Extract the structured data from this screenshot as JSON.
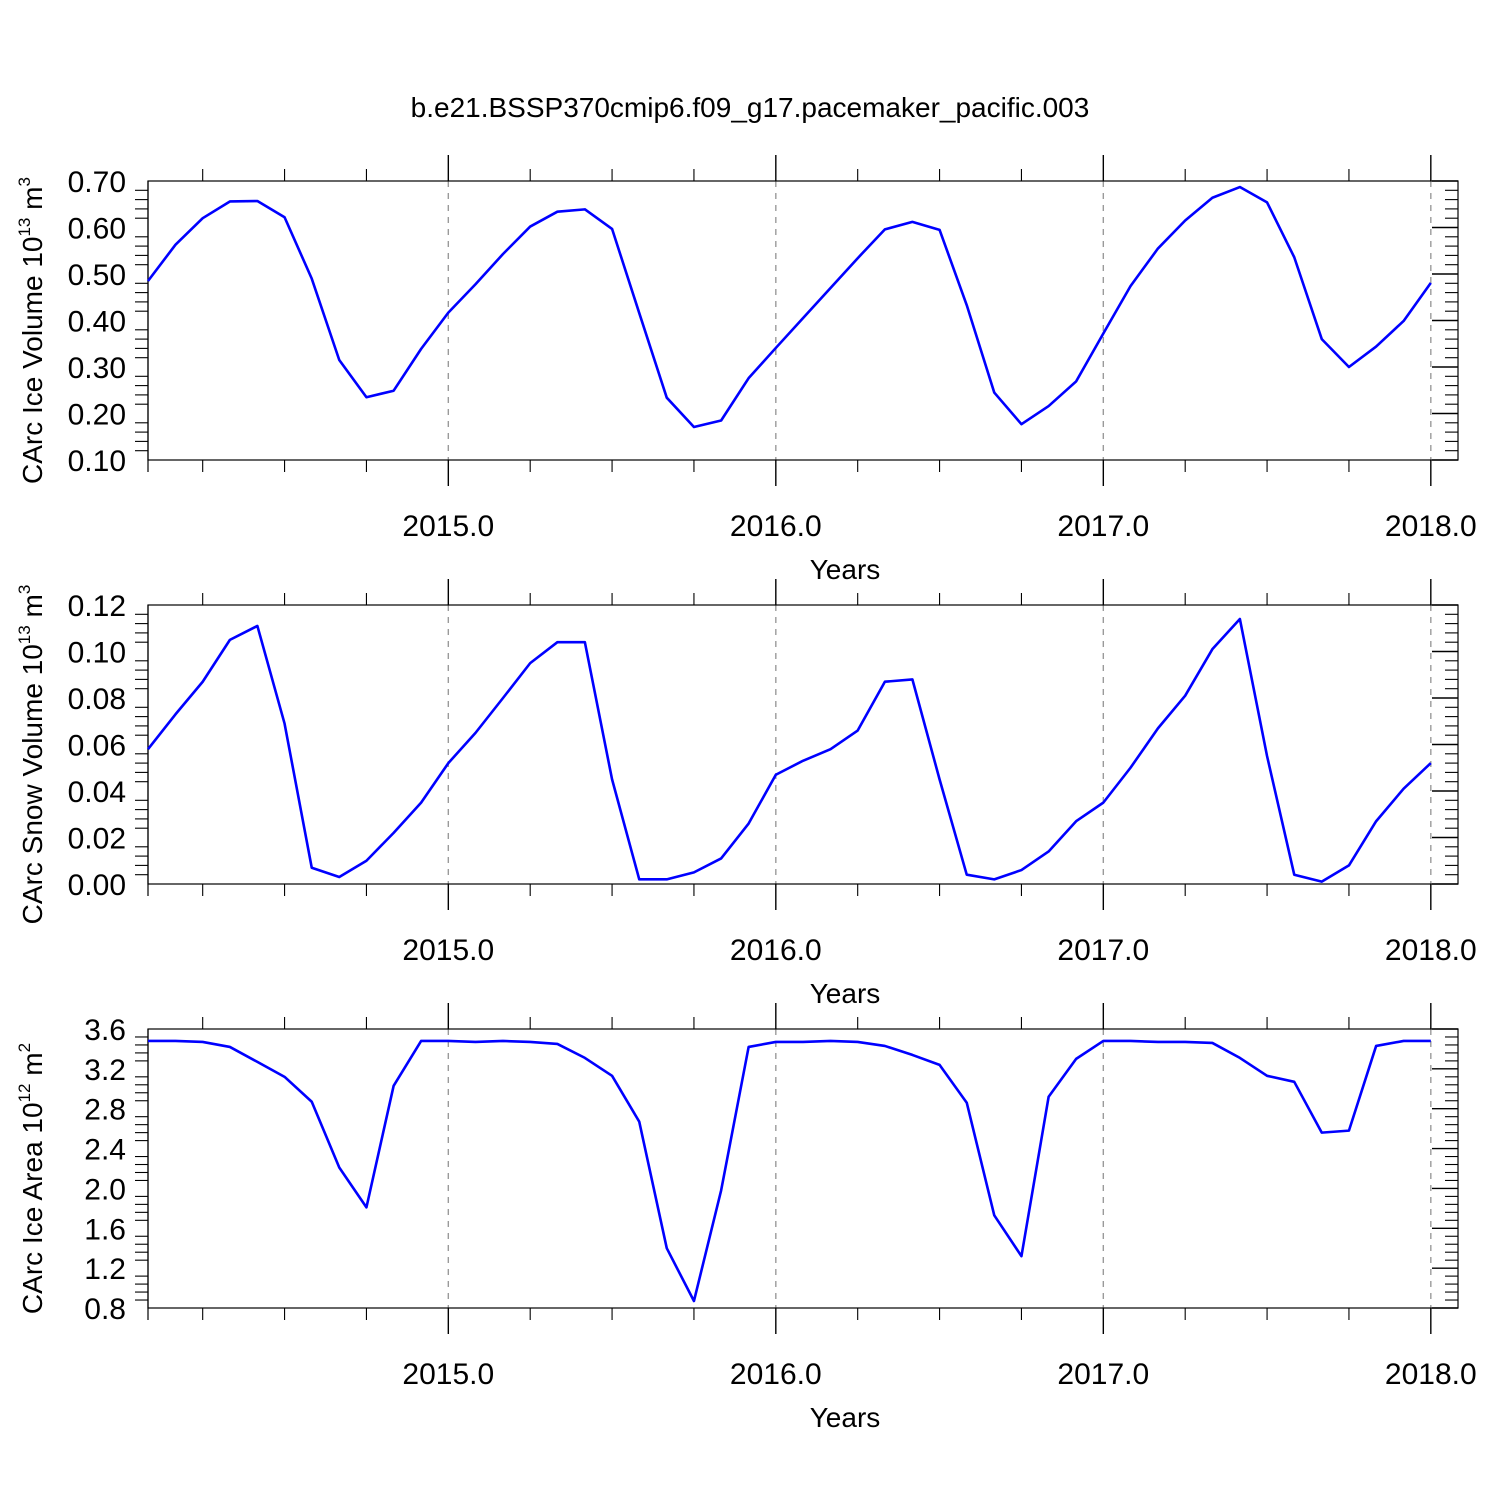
{
  "figure": {
    "title": "b.e21.BSSP370cmip6.f09_g17.pacemaker_pacific.003"
  },
  "style": {
    "line_color": "#0000ff",
    "axis_color": "#000000",
    "grid_color": "#9a9a9a",
    "background": "#ffffff"
  },
  "chart_data": [
    {
      "type": "line",
      "ylabel": "CArc Ice Volume 10^13 m^3",
      "ylabel_parts": {
        "base": "CArc Ice Volume 10",
        "exp1": "13",
        "mid": " m",
        "exp2": "3"
      },
      "xlabel": "Years",
      "xlim": [
        2014.083,
        2018.083
      ],
      "ylim": [
        0.1,
        0.7
      ],
      "yticks": [
        0.1,
        0.2,
        0.3,
        0.4,
        0.5,
        0.6,
        0.7
      ],
      "ytick_labels": [
        "0.10",
        "0.20",
        "0.30",
        "0.40",
        "0.50",
        "0.60",
        "0.70"
      ],
      "xticks": [
        2015.0,
        2016.0,
        2017.0,
        2018.0
      ],
      "xtick_labels": [
        "2015.0",
        "2016.0",
        "2017.0",
        "2018.0"
      ],
      "grid": "vertical dashed at major x ticks",
      "x": [
        2014.083,
        2014.167,
        2014.25,
        2014.333,
        2014.417,
        2014.5,
        2014.583,
        2014.667,
        2014.75,
        2014.833,
        2014.917,
        2015.0,
        2015.083,
        2015.167,
        2015.25,
        2015.333,
        2015.417,
        2015.5,
        2015.583,
        2015.667,
        2015.75,
        2015.833,
        2015.917,
        2016.0,
        2016.083,
        2016.167,
        2016.25,
        2016.333,
        2016.417,
        2016.5,
        2016.583,
        2016.667,
        2016.75,
        2016.833,
        2016.917,
        2017.0,
        2017.083,
        2017.167,
        2017.25,
        2017.333,
        2017.417,
        2017.5,
        2017.583,
        2017.667,
        2017.75,
        2017.833,
        2017.917,
        2018.0
      ],
      "series": [
        {
          "values": [
            0.485,
            0.563,
            0.62,
            0.656,
            0.657,
            0.622,
            0.49,
            0.315,
            0.235,
            0.249,
            0.339,
            0.417,
            0.478,
            0.543,
            0.602,
            0.634,
            0.639,
            0.597,
            0.416,
            0.234,
            0.171,
            0.185,
            0.276,
            0.341,
            0.405,
            0.47,
            0.534,
            0.596,
            0.612,
            0.595,
            0.433,
            0.245,
            0.177,
            0.216,
            0.269,
            0.372,
            0.474,
            0.555,
            0.615,
            0.664,
            0.687,
            0.654,
            0.536,
            0.36,
            0.3,
            0.344,
            0.399,
            0.481
          ]
        }
      ]
    },
    {
      "type": "line",
      "ylabel": "CArc Snow Volume 10^13 m^3",
      "ylabel_parts": {
        "base": "CArc Snow Volume 10",
        "exp1": "13",
        "mid": " m",
        "exp2": "3"
      },
      "xlabel": "Years",
      "xlim": [
        2014.083,
        2018.083
      ],
      "ylim": [
        0.0,
        0.12
      ],
      "yticks": [
        0.0,
        0.02,
        0.04,
        0.06,
        0.08,
        0.1,
        0.12
      ],
      "ytick_labels": [
        "0.00",
        "0.02",
        "0.04",
        "0.06",
        "0.08",
        "0.10",
        "0.12"
      ],
      "xticks": [
        2015.0,
        2016.0,
        2017.0,
        2018.0
      ],
      "xtick_labels": [
        "2015.0",
        "2016.0",
        "2017.0",
        "2018.0"
      ],
      "grid": "vertical dashed at major x ticks",
      "x": [
        2014.083,
        2014.167,
        2014.25,
        2014.333,
        2014.417,
        2014.5,
        2014.583,
        2014.667,
        2014.75,
        2014.833,
        2014.917,
        2015.0,
        2015.083,
        2015.167,
        2015.25,
        2015.333,
        2015.417,
        2015.5,
        2015.583,
        2015.667,
        2015.75,
        2015.833,
        2015.917,
        2016.0,
        2016.083,
        2016.167,
        2016.25,
        2016.333,
        2016.417,
        2016.5,
        2016.583,
        2016.667,
        2016.75,
        2016.833,
        2016.917,
        2017.0,
        2017.083,
        2017.167,
        2017.25,
        2017.333,
        2017.417,
        2017.5,
        2017.583,
        2017.667,
        2017.75,
        2017.833,
        2017.917,
        2018.0
      ],
      "series": [
        {
          "values": [
            0.058,
            0.073,
            0.087,
            0.105,
            0.111,
            0.069,
            0.007,
            0.003,
            0.01,
            0.022,
            0.035,
            0.052,
            0.065,
            0.08,
            0.095,
            0.104,
            0.104,
            0.045,
            0.002,
            0.002,
            0.005,
            0.011,
            0.026,
            0.047,
            0.053,
            0.058,
            0.066,
            0.087,
            0.088,
            0.045,
            0.004,
            0.002,
            0.006,
            0.014,
            0.027,
            0.035,
            0.05,
            0.067,
            0.081,
            0.101,
            0.114,
            0.055,
            0.004,
            0.001,
            0.008,
            0.027,
            0.041,
            0.052
          ]
        }
      ]
    },
    {
      "type": "line",
      "ylabel": "CArc Ice Area 10^12 m^2",
      "ylabel_parts": {
        "base": "CArc Ice Area 10",
        "exp1": "12",
        "mid": " m",
        "exp2": "2"
      },
      "xlabel": "Years",
      "xlim": [
        2014.083,
        2018.083
      ],
      "ylim": [
        0.8,
        3.6
      ],
      "yticks": [
        0.8,
        1.2,
        1.6,
        2.0,
        2.4,
        2.8,
        3.2,
        3.6
      ],
      "ytick_labels": [
        "0.8",
        "1.2",
        "1.6",
        "2.0",
        "2.4",
        "2.8",
        "3.2",
        "3.6"
      ],
      "xticks": [
        2015.0,
        2016.0,
        2017.0,
        2018.0
      ],
      "xtick_labels": [
        "2015.0",
        "2016.0",
        "2017.0",
        "2018.0"
      ],
      "grid": "vertical dashed at major x ticks",
      "x": [
        2014.083,
        2014.167,
        2014.25,
        2014.333,
        2014.417,
        2014.5,
        2014.583,
        2014.667,
        2014.75,
        2014.833,
        2014.917,
        2015.0,
        2015.083,
        2015.167,
        2015.25,
        2015.333,
        2015.417,
        2015.5,
        2015.583,
        2015.667,
        2015.75,
        2015.833,
        2015.917,
        2016.0,
        2016.083,
        2016.167,
        2016.25,
        2016.333,
        2016.417,
        2016.5,
        2016.583,
        2016.667,
        2016.75,
        2016.833,
        2016.917,
        2017.0,
        2017.083,
        2017.167,
        2017.25,
        2017.333,
        2017.417,
        2017.5,
        2017.583,
        2017.667,
        2017.75,
        2017.833,
        2017.917,
        2018.0
      ],
      "series": [
        {
          "values": [
            3.48,
            3.48,
            3.47,
            3.42,
            3.27,
            3.12,
            2.87,
            2.21,
            1.81,
            3.03,
            3.48,
            3.48,
            3.47,
            3.48,
            3.47,
            3.45,
            3.31,
            3.13,
            2.67,
            1.4,
            0.87,
            1.98,
            3.42,
            3.47,
            3.47,
            3.48,
            3.47,
            3.43,
            3.34,
            3.24,
            2.86,
            1.73,
            1.32,
            2.92,
            3.3,
            3.48,
            3.48,
            3.47,
            3.47,
            3.46,
            3.31,
            3.13,
            3.07,
            2.56,
            2.58,
            3.43,
            3.48,
            3.48
          ]
        }
      ]
    }
  ]
}
